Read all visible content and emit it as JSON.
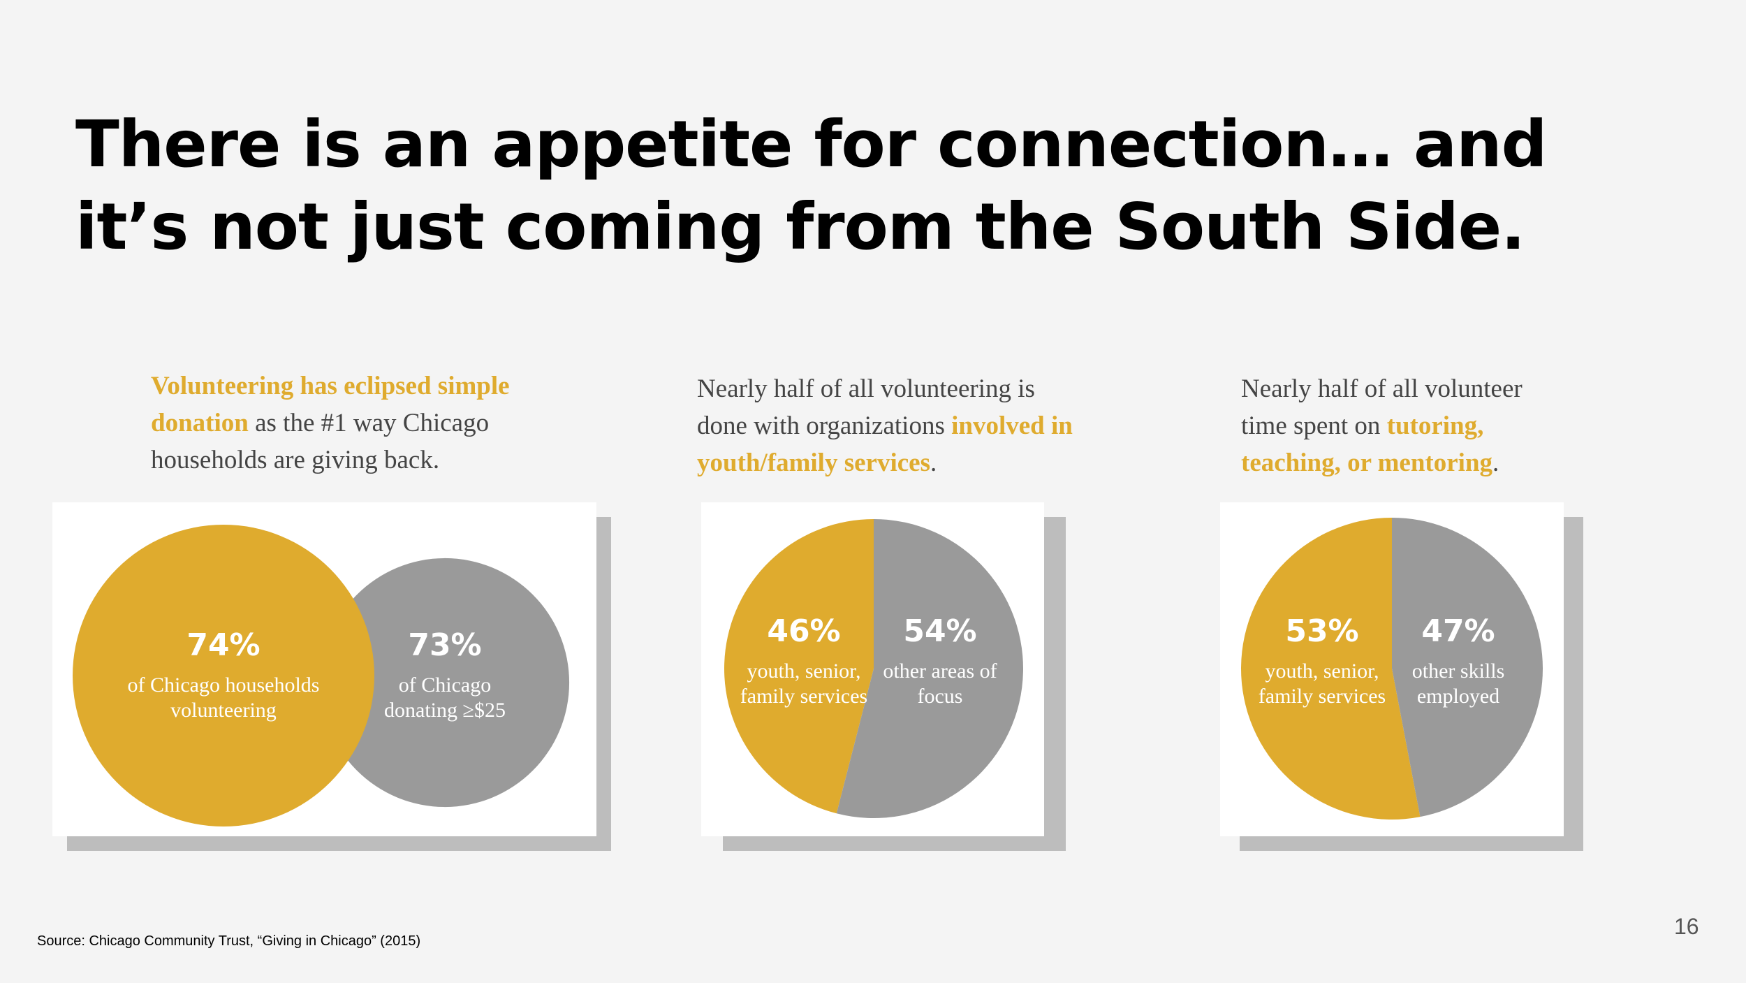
{
  "slide": {
    "title_line1": "There is an appetite for connection… and",
    "title_line2": "it’s not just coming from the South Side.",
    "source": "Source: Chicago Community Trust, “Giving in Chicago” (2015)",
    "page_number": "16"
  },
  "panels": [
    {
      "caption": {
        "highlight_a": "Volunteering has eclipsed simple donation",
        "text_b": " as the #1 way Chicago households are giving back."
      }
    },
    {
      "caption": {
        "text_a": "Nearly half of all volunteering is done with organizations ",
        "highlight_b": "involved in youth/family services",
        "text_c": "."
      }
    },
    {
      "caption": {
        "text_a": "Nearly half of all volunteer time spent on ",
        "highlight_b": "tutoring, teaching, or mentoring",
        "text_c": "."
      }
    }
  ],
  "colors": {
    "gold": "#dfab2e",
    "gray": "#9a9a9a",
    "background": "#f4f4f4",
    "card": "#ffffff",
    "shadow": "#bdbdbd"
  },
  "chart_data": [
    {
      "type": "venn",
      "sets": [
        {
          "value": 74,
          "percent_label": "74%",
          "label_lines": [
            "of Chicago households",
            "volunteering"
          ],
          "color": "#dfab2e"
        },
        {
          "value": 73,
          "percent_label": "73%",
          "label_lines": [
            "of Chicago",
            "donating ≥$25"
          ],
          "color": "#9a9a9a"
        }
      ]
    },
    {
      "type": "pie",
      "slices": [
        {
          "value": 46,
          "percent_label": "46%",
          "label_lines": [
            "youth, senior,",
            "family services"
          ],
          "color": "#dfab2e"
        },
        {
          "value": 54,
          "percent_label": "54%",
          "label_lines": [
            "other areas of",
            "focus"
          ],
          "color": "#9a9a9a"
        }
      ]
    },
    {
      "type": "pie",
      "slices": [
        {
          "value": 53,
          "percent_label": "53%",
          "label_lines": [
            "youth, senior,",
            "family services"
          ],
          "color": "#dfab2e"
        },
        {
          "value": 47,
          "percent_label": "47%",
          "label_lines": [
            "other skills",
            "employed"
          ],
          "color": "#9a9a9a"
        }
      ]
    }
  ]
}
